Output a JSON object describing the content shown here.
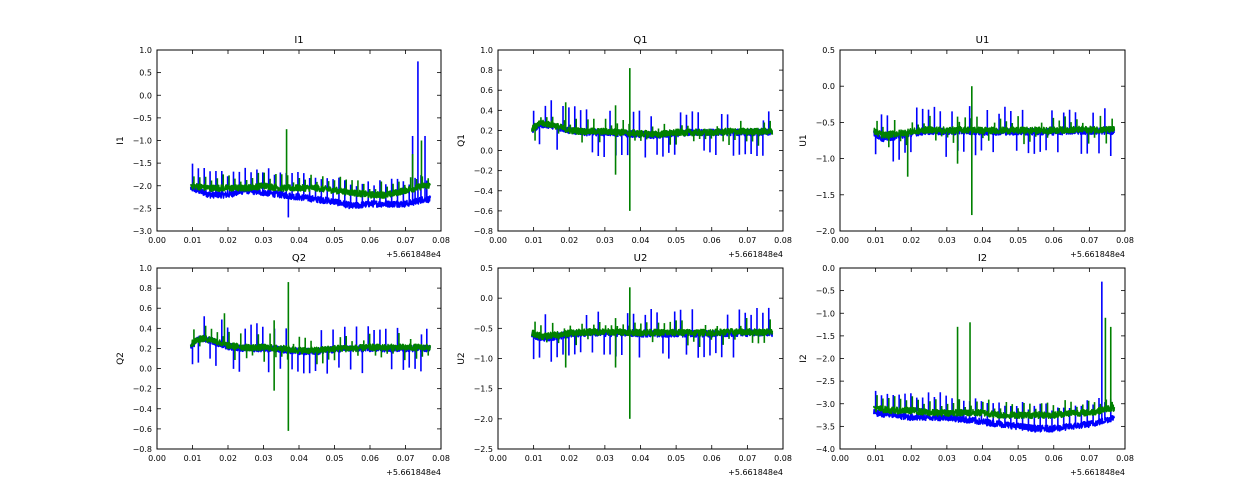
{
  "colors": {
    "series_1": "#0000ff",
    "series_2": "#008000"
  },
  "chart_data": [
    {
      "type": "line",
      "title": "I1",
      "ylabel": "I1",
      "xlim": [
        0.0,
        0.08
      ],
      "ylim": [
        -3.0,
        1.0
      ],
      "x_offset": "+5.661848e4",
      "xticks": [
        "0.00",
        "0.01",
        "0.02",
        "0.03",
        "0.04",
        "0.05",
        "0.06",
        "0.07",
        "0.08"
      ],
      "yticks": [
        "−3.0",
        "−2.5",
        "−2.0",
        "−1.5",
        "−1.0",
        "−0.5",
        "0.0",
        "0.5",
        "1.0"
      ],
      "series": [
        {
          "x": [
            0.0095,
            0.015,
            0.02,
            0.025,
            0.03,
            0.035,
            0.04,
            0.045,
            0.05,
            0.055,
            0.06,
            0.065,
            0.07,
            0.073,
            0.075,
            0.077
          ],
          "y": [
            -2.05,
            -2.2,
            -2.2,
            -2.1,
            -2.15,
            -2.2,
            -2.25,
            -2.3,
            -2.35,
            -2.45,
            -2.4,
            -2.4,
            -2.4,
            -2.35,
            -2.3,
            -2.3
          ],
          "spikes": [
            [
              0.0735,
              0.75
            ],
            [
              0.072,
              -0.9
            ],
            [
              0.0755,
              -0.9
            ],
            [
              0.037,
              -2.7
            ]
          ]
        },
        {
          "x": [
            0.0095,
            0.015,
            0.02,
            0.025,
            0.03,
            0.035,
            0.04,
            0.045,
            0.05,
            0.055,
            0.06,
            0.065,
            0.07,
            0.073,
            0.075,
            0.077
          ],
          "y": [
            -2.0,
            -2.05,
            -2.05,
            -2.05,
            -2.0,
            -2.05,
            -2.05,
            -2.05,
            -2.1,
            -2.15,
            -2.2,
            -2.2,
            -2.1,
            -2.05,
            -2.0,
            -2.0
          ],
          "spikes": [
            [
              0.0365,
              -0.75
            ],
            [
              0.072,
              -1.3
            ],
            [
              0.0745,
              -1.0
            ]
          ]
        }
      ]
    },
    {
      "type": "line",
      "title": "Q1",
      "ylabel": "Q1",
      "xlim": [
        0.0,
        0.08
      ],
      "ylim": [
        -0.8,
        1.0
      ],
      "x_offset": "+5.661848e4",
      "xticks": [
        "0.00",
        "0.01",
        "0.02",
        "0.03",
        "0.04",
        "0.05",
        "0.06",
        "0.07",
        "0.08"
      ],
      "yticks": [
        "−0.8",
        "−0.6",
        "−0.4",
        "−0.2",
        "0.0",
        "0.2",
        "0.4",
        "0.6",
        "0.8",
        "1.0"
      ],
      "series": [
        {
          "x": [
            0.0095,
            0.012,
            0.015,
            0.02,
            0.025,
            0.03,
            0.035,
            0.04,
            0.045,
            0.05,
            0.055,
            0.06,
            0.065,
            0.07,
            0.075,
            0.077
          ],
          "y": [
            0.2,
            0.26,
            0.25,
            0.2,
            0.18,
            0.18,
            0.17,
            0.16,
            0.15,
            0.17,
            0.18,
            0.18,
            0.18,
            0.18,
            0.18,
            0.18
          ],
          "spikes": [
            [
              0.0745,
              0.3
            ]
          ]
        },
        {
          "x": [
            0.0095,
            0.012,
            0.015,
            0.02,
            0.025,
            0.03,
            0.035,
            0.04,
            0.045,
            0.05,
            0.055,
            0.06,
            0.065,
            0.07,
            0.075,
            0.077
          ],
          "y": [
            0.22,
            0.27,
            0.26,
            0.2,
            0.19,
            0.19,
            0.18,
            0.17,
            0.16,
            0.18,
            0.18,
            0.18,
            0.19,
            0.19,
            0.19,
            0.19
          ],
          "spikes": [
            [
              0.019,
              0.48
            ],
            [
              0.033,
              0.45
            ],
            [
              0.033,
              -0.24
            ],
            [
              0.037,
              0.82
            ],
            [
              0.037,
              -0.6
            ]
          ]
        }
      ]
    },
    {
      "type": "line",
      "title": "U1",
      "ylabel": "U1",
      "xlim": [
        0.0,
        0.08
      ],
      "ylim": [
        -2.0,
        0.5
      ],
      "x_offset": "+5.661848e4",
      "xticks": [
        "0.00",
        "0.01",
        "0.02",
        "0.03",
        "0.04",
        "0.05",
        "0.06",
        "0.07",
        "0.08"
      ],
      "yticks": [
        "−2.0",
        "−1.5",
        "−1.0",
        "−0.5",
        "0.0",
        "0.5"
      ],
      "series": [
        {
          "x": [
            0.0095,
            0.012,
            0.015,
            0.02,
            0.025,
            0.03,
            0.035,
            0.04,
            0.045,
            0.05,
            0.055,
            0.06,
            0.065,
            0.07,
            0.075,
            0.077
          ],
          "y": [
            -0.65,
            -0.72,
            -0.7,
            -0.65,
            -0.62,
            -0.63,
            -0.62,
            -0.63,
            -0.63,
            -0.63,
            -0.63,
            -0.63,
            -0.62,
            -0.62,
            -0.62,
            -0.62
          ],
          "spikes": []
        },
        {
          "x": [
            0.0095,
            0.012,
            0.015,
            0.02,
            0.025,
            0.03,
            0.035,
            0.04,
            0.045,
            0.05,
            0.055,
            0.06,
            0.065,
            0.07,
            0.075,
            0.077
          ],
          "y": [
            -0.62,
            -0.68,
            -0.66,
            -0.63,
            -0.6,
            -0.61,
            -0.6,
            -0.61,
            -0.61,
            -0.61,
            -0.61,
            -0.61,
            -0.6,
            -0.6,
            -0.6,
            -0.6
          ],
          "spikes": [
            [
              0.019,
              -1.25
            ],
            [
              0.033,
              -0.42
            ],
            [
              0.033,
              -1.07
            ],
            [
              0.037,
              0.0
            ],
            [
              0.037,
              -1.78
            ]
          ]
        }
      ]
    },
    {
      "type": "line",
      "title": "Q2",
      "ylabel": "Q2",
      "xlim": [
        0.0,
        0.08
      ],
      "ylim": [
        -0.8,
        1.0
      ],
      "x_offset": "+5.661848e4",
      "xticks": [
        "0.00",
        "0.01",
        "0.02",
        "0.03",
        "0.04",
        "0.05",
        "0.06",
        "0.07",
        "0.08"
      ],
      "yticks": [
        "−0.8",
        "−0.6",
        "−0.4",
        "−0.2",
        "0.0",
        "0.2",
        "0.4",
        "0.6",
        "0.8",
        "1.0"
      ],
      "series": [
        {
          "x": [
            0.0095,
            0.012,
            0.015,
            0.02,
            0.025,
            0.03,
            0.035,
            0.04,
            0.045,
            0.05,
            0.055,
            0.06,
            0.065,
            0.07,
            0.075,
            0.077
          ],
          "y": [
            0.22,
            0.3,
            0.28,
            0.22,
            0.2,
            0.2,
            0.19,
            0.17,
            0.17,
            0.19,
            0.2,
            0.2,
            0.2,
            0.2,
            0.2,
            0.2
          ],
          "spikes": [
            [
              0.0745,
              0.34
            ]
          ]
        },
        {
          "x": [
            0.0095,
            0.012,
            0.015,
            0.02,
            0.025,
            0.03,
            0.035,
            0.04,
            0.045,
            0.05,
            0.055,
            0.06,
            0.065,
            0.07,
            0.075,
            0.077
          ],
          "y": [
            0.24,
            0.3,
            0.29,
            0.23,
            0.21,
            0.21,
            0.2,
            0.18,
            0.18,
            0.2,
            0.2,
            0.21,
            0.21,
            0.21,
            0.21,
            0.21
          ],
          "spikes": [
            [
              0.019,
              0.55
            ],
            [
              0.033,
              0.48
            ],
            [
              0.033,
              -0.22
            ],
            [
              0.037,
              0.86
            ],
            [
              0.037,
              -0.62
            ]
          ]
        }
      ]
    },
    {
      "type": "line",
      "title": "U2",
      "ylabel": "U2",
      "xlim": [
        0.0,
        0.08
      ],
      "ylim": [
        -2.5,
        0.5
      ],
      "x_offset": "+5.661848e4",
      "xticks": [
        "0.00",
        "0.01",
        "0.02",
        "0.03",
        "0.04",
        "0.05",
        "0.06",
        "0.07",
        "0.08"
      ],
      "yticks": [
        "−2.5",
        "−2.0",
        "−1.5",
        "−1.0",
        "−0.5",
        "0.0",
        "0.5"
      ],
      "series": [
        {
          "x": [
            0.0095,
            0.012,
            0.015,
            0.02,
            0.025,
            0.03,
            0.035,
            0.04,
            0.045,
            0.05,
            0.055,
            0.06,
            0.065,
            0.07,
            0.075,
            0.077
          ],
          "y": [
            -0.6,
            -0.66,
            -0.65,
            -0.6,
            -0.58,
            -0.58,
            -0.58,
            -0.59,
            -0.59,
            -0.59,
            -0.59,
            -0.59,
            -0.58,
            -0.58,
            -0.58,
            -0.58
          ],
          "spikes": []
        },
        {
          "x": [
            0.0095,
            0.012,
            0.015,
            0.02,
            0.025,
            0.03,
            0.035,
            0.04,
            0.045,
            0.05,
            0.055,
            0.06,
            0.065,
            0.07,
            0.075,
            0.077
          ],
          "y": [
            -0.58,
            -0.63,
            -0.62,
            -0.58,
            -0.56,
            -0.56,
            -0.56,
            -0.57,
            -0.57,
            -0.57,
            -0.57,
            -0.57,
            -0.56,
            -0.56,
            -0.56,
            -0.56
          ],
          "spikes": [
            [
              0.019,
              -1.15
            ],
            [
              0.033,
              -0.33
            ],
            [
              0.033,
              -1.15
            ],
            [
              0.037,
              0.18
            ],
            [
              0.037,
              -2.0
            ]
          ]
        }
      ]
    },
    {
      "type": "line",
      "title": "I2",
      "ylabel": "I2",
      "xlim": [
        0.0,
        0.08
      ],
      "ylim": [
        -4.0,
        0.0
      ],
      "x_offset": "+5.661848e4",
      "xticks": [
        "0.00",
        "0.01",
        "0.02",
        "0.03",
        "0.04",
        "0.05",
        "0.06",
        "0.07",
        "0.08"
      ],
      "yticks": [
        "−4.0",
        "−3.5",
        "−3.0",
        "−2.5",
        "−2.0",
        "−1.5",
        "−1.0",
        "−0.5",
        "0.0"
      ],
      "series": [
        {
          "x": [
            0.0095,
            0.015,
            0.02,
            0.025,
            0.03,
            0.035,
            0.04,
            0.045,
            0.05,
            0.055,
            0.06,
            0.065,
            0.07,
            0.073,
            0.075,
            0.077
          ],
          "y": [
            -3.2,
            -3.25,
            -3.3,
            -3.3,
            -3.3,
            -3.35,
            -3.4,
            -3.45,
            -3.5,
            -3.55,
            -3.55,
            -3.5,
            -3.45,
            -3.4,
            -3.35,
            -3.3
          ],
          "spikes": [
            [
              0.0735,
              -0.3
            ]
          ]
        },
        {
          "x": [
            0.0095,
            0.015,
            0.02,
            0.025,
            0.03,
            0.035,
            0.04,
            0.045,
            0.05,
            0.055,
            0.06,
            0.065,
            0.07,
            0.073,
            0.075,
            0.077
          ],
          "y": [
            -3.1,
            -3.15,
            -3.15,
            -3.2,
            -3.2,
            -3.2,
            -3.2,
            -3.25,
            -3.25,
            -3.25,
            -3.25,
            -3.2,
            -3.2,
            -3.15,
            -3.1,
            -3.1
          ],
          "spikes": [
            [
              0.0365,
              -1.2
            ],
            [
              0.0745,
              -1.1
            ],
            [
              0.076,
              -1.3
            ],
            [
              0.033,
              -1.3
            ]
          ]
        }
      ]
    }
  ]
}
